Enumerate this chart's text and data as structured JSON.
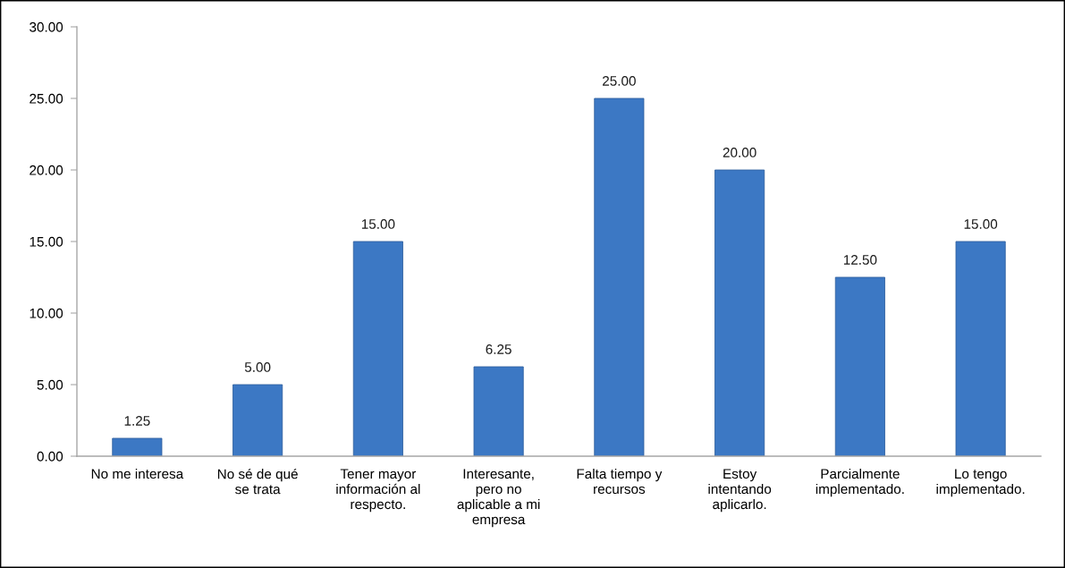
{
  "chart_data": {
    "type": "bar",
    "categories": [
      "No me interesa",
      "No sé de qué se trata",
      "Tener mayor información al respecto.",
      "Interesante, pero no aplicable a mi empresa",
      "Falta tiempo y recursos",
      "Estoy intentando aplicarlo.",
      "Parcialmente implementado.",
      "Lo tengo implementado."
    ],
    "values": [
      1.25,
      5,
      15,
      6.25,
      25,
      20,
      12.5,
      15
    ],
    "value_labels": [
      "1.25",
      "5.00",
      "15.00",
      "6.25",
      "25.00",
      "20.00",
      "12.50",
      "15.00"
    ],
    "color": "#3c78c4",
    "ylim": [
      0,
      30
    ],
    "yticks": [
      {
        "value": 0,
        "label": "0.00"
      },
      {
        "value": 5,
        "label": "5.00"
      },
      {
        "value": 10,
        "label": "10.00"
      },
      {
        "value": 15,
        "label": "15.00"
      },
      {
        "value": 20,
        "label": "20.00"
      },
      {
        "value": 25,
        "label": "25.00"
      },
      {
        "value": 30,
        "label": "30.00"
      }
    ]
  }
}
